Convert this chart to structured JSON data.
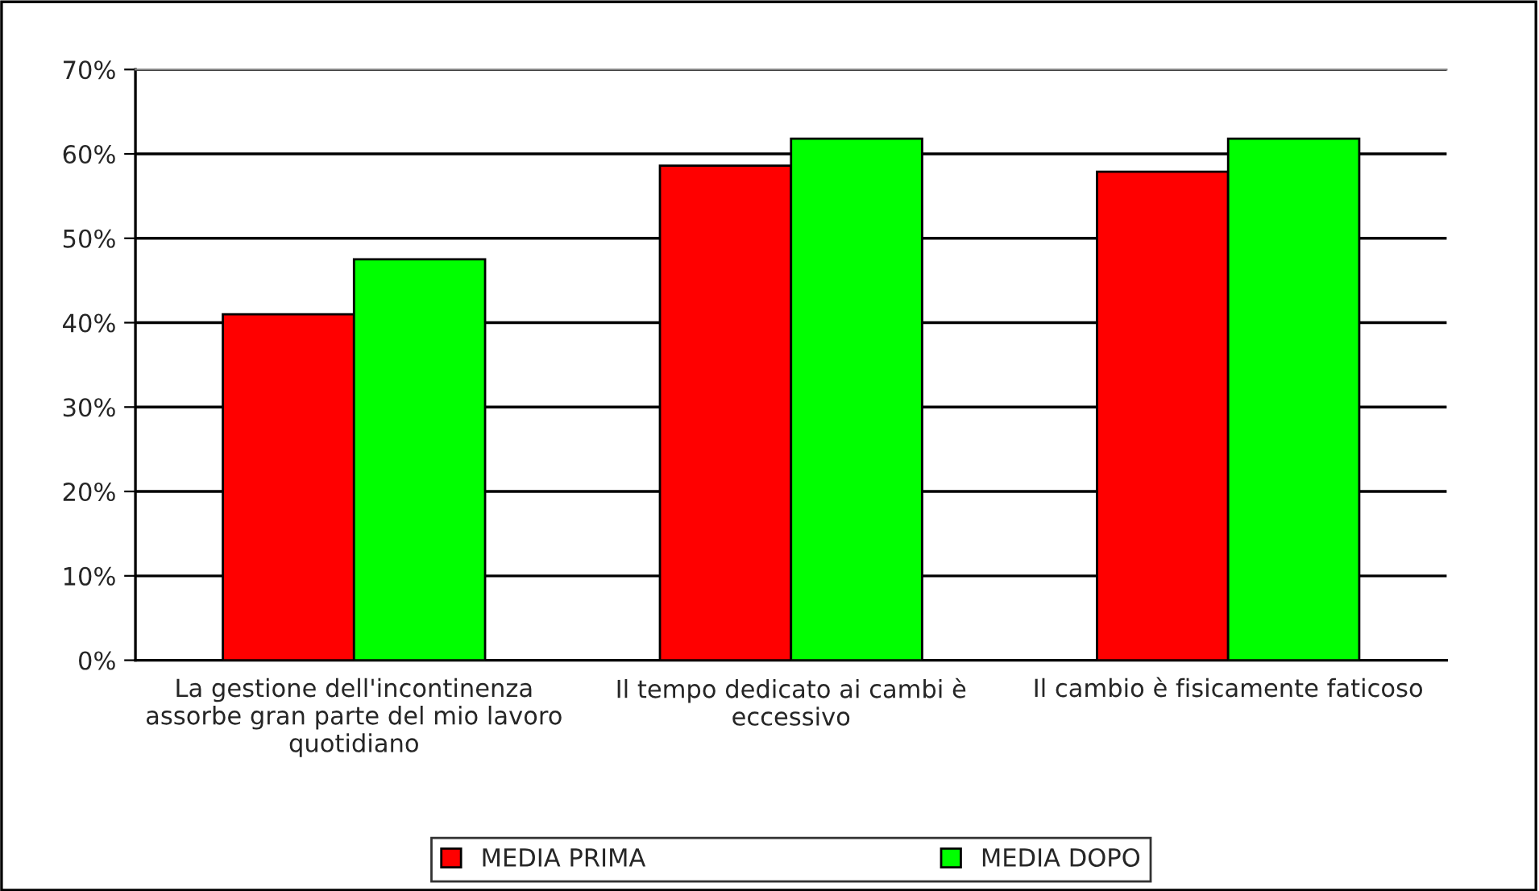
{
  "chart_data": {
    "type": "bar",
    "categories": [
      "La gestione dell'incontinenza\nassorbe gran parte del mio lavoro\nquotidiano",
      "Il tempo dedicato ai cambi è\neccessivo",
      "Il cambio è fisicamente faticoso"
    ],
    "series": [
      {
        "name": "MEDIA PRIMA",
        "color": "#ff0000",
        "values": [
          41,
          58.6,
          57.9
        ]
      },
      {
        "name": "MEDIA DOPO",
        "color": "#00ff00",
        "values": [
          47.5,
          61.8,
          61.8
        ]
      }
    ],
    "ylim": [
      0,
      70
    ],
    "yticks": [
      {
        "value": 0,
        "label": "0%"
      },
      {
        "value": 10,
        "label": "10%"
      },
      {
        "value": 20,
        "label": "20%"
      },
      {
        "value": 30,
        "label": "30%"
      },
      {
        "value": 40,
        "label": "40%"
      },
      {
        "value": 50,
        "label": "50%"
      },
      {
        "value": 60,
        "label": "60%"
      },
      {
        "value": 70,
        "label": "70%"
      }
    ],
    "grid": "y",
    "legend": "bottom"
  }
}
